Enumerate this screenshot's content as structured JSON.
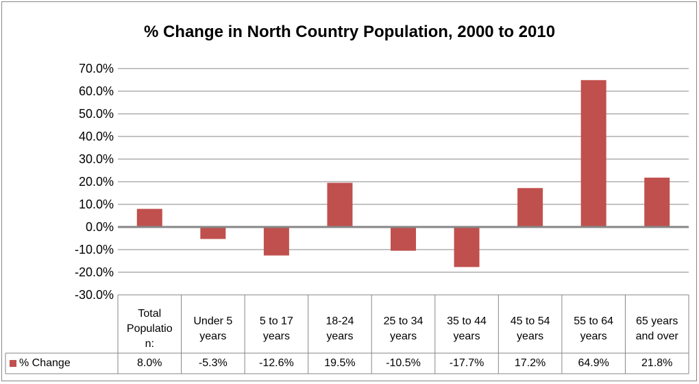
{
  "chart_data": {
    "type": "bar",
    "title": "% Change in North Country Population, 2000 to 2010",
    "categories": [
      "Total Population:",
      "Under 5 years",
      "5 to 17 years",
      "18-24 years",
      "25 to 34 years",
      "35 to 44 years",
      "45 to 54 years",
      "55 to 64 years",
      "65 years and over"
    ],
    "series": [
      {
        "name": "% Change",
        "color": "#c0504d",
        "values": [
          8.0,
          -5.3,
          -12.6,
          19.5,
          -10.5,
          -17.7,
          17.2,
          64.9,
          21.8
        ],
        "value_labels": [
          "8.0%",
          "-5.3%",
          "-12.6%",
          "19.5%",
          "-10.5%",
          "-17.7%",
          "17.2%",
          "64.9%",
          "21.8%"
        ]
      }
    ],
    "ylim": [
      -30,
      70
    ],
    "yticks": [
      {
        "value": -30,
        "label": "-30.0%"
      },
      {
        "value": -20,
        "label": "-20.0%"
      },
      {
        "value": -10,
        "label": "-10.0%"
      },
      {
        "value": 0,
        "label": "0.0%"
      },
      {
        "value": 10,
        "label": "10.0%"
      },
      {
        "value": 20,
        "label": "20.0%"
      },
      {
        "value": 30,
        "label": "30.0%"
      },
      {
        "value": 40,
        "label": "40.0%"
      },
      {
        "value": 50,
        "label": "50.0%"
      },
      {
        "value": 60,
        "label": "60.0%"
      },
      {
        "value": 70,
        "label": "70.0%"
      }
    ],
    "grid": true,
    "data_table": true
  }
}
